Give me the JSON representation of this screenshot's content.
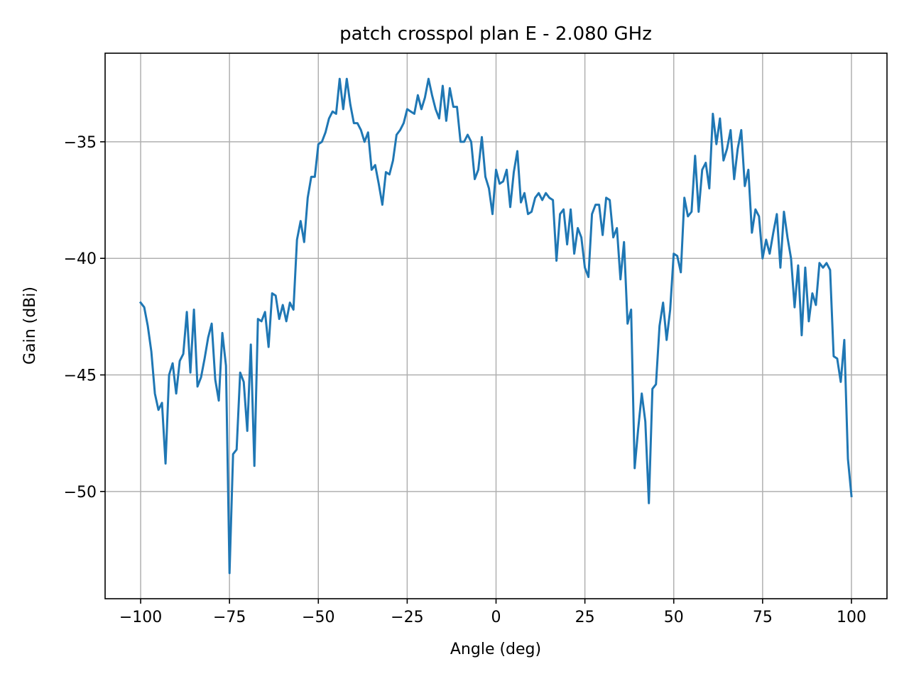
{
  "chart_data": {
    "type": "line",
    "title": "patch crosspol plan E - 2.080 GHz",
    "xlabel": "Angle (deg)",
    "ylabel": "Gain (dBi)",
    "xlim": [
      -110,
      110
    ],
    "ylim": [
      -54.6,
      -31.2
    ],
    "xticks": [
      -100,
      -75,
      -50,
      -25,
      0,
      25,
      50,
      75,
      100
    ],
    "xtick_labels": [
      "−100",
      "−75",
      "−50",
      "−25",
      "0",
      "25",
      "50",
      "75",
      "100"
    ],
    "yticks": [
      -35,
      -40,
      -45,
      -50
    ],
    "ytick_labels": [
      "−35",
      "−40",
      "−45",
      "−50"
    ],
    "grid": true,
    "color": "#1f77b4",
    "series": [
      {
        "x": [
          -100,
          -99,
          -98,
          -97,
          -96,
          -95,
          -94,
          -93,
          -92,
          -91,
          -90,
          -89,
          -88,
          -87,
          -86,
          -85,
          -84,
          -83,
          -82,
          -81,
          -80,
          -79,
          -78,
          -77,
          -76,
          -75,
          -74,
          -73,
          -72,
          -71,
          -70,
          -69,
          -68,
          -67,
          -66,
          -65,
          -64,
          -63,
          -62,
          -61,
          -60,
          -59,
          -58,
          -57,
          -56,
          -55,
          -54,
          -53,
          -52,
          -51,
          -50,
          -49,
          -48,
          -47,
          -46,
          -45,
          -44,
          -43,
          -42,
          -41,
          -40,
          -39,
          -38,
          -37,
          -36,
          -35,
          -34,
          -33,
          -32,
          -31,
          -30,
          -29,
          -28,
          -27,
          -26,
          -25,
          -24,
          -23,
          -22,
          -21,
          -20,
          -19,
          -18,
          -17,
          -16,
          -15,
          -14,
          -13,
          -12,
          -11,
          -10,
          -9,
          -8,
          -7,
          -6,
          -5,
          -4,
          -3,
          -2,
          -1,
          0,
          1,
          2,
          3,
          4,
          5,
          6,
          7,
          8,
          9,
          10,
          11,
          12,
          13,
          14,
          15,
          16,
          17,
          18,
          19,
          20,
          21,
          22,
          23,
          24,
          25,
          26,
          27,
          28,
          29,
          30,
          31,
          32,
          33,
          34,
          35,
          36,
          37,
          38,
          39,
          40,
          41,
          42,
          43,
          44,
          45,
          46,
          47,
          48,
          49,
          50,
          51,
          52,
          53,
          54,
          55,
          56,
          57,
          58,
          59,
          60,
          61,
          62,
          63,
          64,
          65,
          66,
          67,
          68,
          69,
          70,
          71,
          72,
          73,
          74,
          75,
          76,
          77,
          78,
          79,
          80,
          81,
          82,
          83,
          84,
          85,
          86,
          87,
          88,
          89,
          90,
          91,
          92,
          93,
          94,
          95,
          96,
          97,
          98,
          99,
          100
        ],
        "y": [
          -41.9,
          -42.1,
          -42.9,
          -44.0,
          -45.8,
          -46.5,
          -46.2,
          -48.8,
          -45.0,
          -44.5,
          -45.8,
          -44.4,
          -44.1,
          -42.3,
          -44.9,
          -42.2,
          -45.5,
          -45.1,
          -44.3,
          -43.4,
          -42.8,
          -45.2,
          -46.1,
          -43.2,
          -44.6,
          -53.5,
          -48.4,
          -48.2,
          -44.9,
          -45.3,
          -47.4,
          -43.7,
          -48.9,
          -42.6,
          -42.7,
          -42.3,
          -43.8,
          -41.5,
          -41.6,
          -42.6,
          -42.0,
          -42.7,
          -41.9,
          -42.2,
          -39.2,
          -38.4,
          -39.3,
          -37.4,
          -36.5,
          -36.5,
          -35.1,
          -35.0,
          -34.6,
          -34.0,
          -33.7,
          -33.8,
          -32.3,
          -33.6,
          -32.3,
          -33.4,
          -34.2,
          -34.2,
          -34.5,
          -35.0,
          -34.6,
          -36.2,
          -36.0,
          -36.8,
          -37.7,
          -36.3,
          -36.4,
          -35.8,
          -34.7,
          -34.5,
          -34.2,
          -33.6,
          -33.7,
          -33.8,
          -33.0,
          -33.6,
          -33.1,
          -32.3,
          -33.0,
          -33.6,
          -34.0,
          -32.6,
          -34.1,
          -32.7,
          -33.5,
          -33.5,
          -35.0,
          -35.0,
          -34.7,
          -35.0,
          -36.6,
          -36.2,
          -34.8,
          -36.5,
          -37.0,
          -38.1,
          -36.2,
          -36.8,
          -36.7,
          -36.2,
          -37.8,
          -36.3,
          -35.4,
          -37.6,
          -37.2,
          -38.1,
          -38.0,
          -37.4,
          -37.2,
          -37.5,
          -37.2,
          -37.4,
          -37.5,
          -40.1,
          -38.1,
          -37.9,
          -39.4,
          -37.9,
          -39.8,
          -38.7,
          -39.1,
          -40.4,
          -40.8,
          -38.1,
          -37.7,
          -37.7,
          -39.0,
          -37.4,
          -37.5,
          -39.1,
          -38.7,
          -40.9,
          -39.3,
          -42.8,
          -42.2,
          -49.0,
          -47.3,
          -45.8,
          -47.0,
          -50.5,
          -45.6,
          -45.4,
          -42.9,
          -41.9,
          -43.5,
          -42.2,
          -39.8,
          -39.9,
          -40.6,
          -37.4,
          -38.2,
          -38.0,
          -35.6,
          -38.0,
          -36.2,
          -35.9,
          -37.0,
          -33.8,
          -35.1,
          -34.0,
          -35.8,
          -35.3,
          -34.5,
          -36.6,
          -35.3,
          -34.5,
          -36.9,
          -36.2,
          -38.9,
          -37.9,
          -38.2,
          -40.0,
          -39.2,
          -39.8,
          -38.9,
          -38.1,
          -40.4,
          -38.0,
          -39.1,
          -40.0,
          -42.1,
          -40.3,
          -43.3,
          -40.4,
          -42.7,
          -41.5,
          -42.0,
          -40.2,
          -40.4,
          -40.2,
          -40.5,
          -44.2,
          -44.3,
          -45.3,
          -43.5,
          -48.6,
          -50.2
        ]
      }
    ]
  }
}
